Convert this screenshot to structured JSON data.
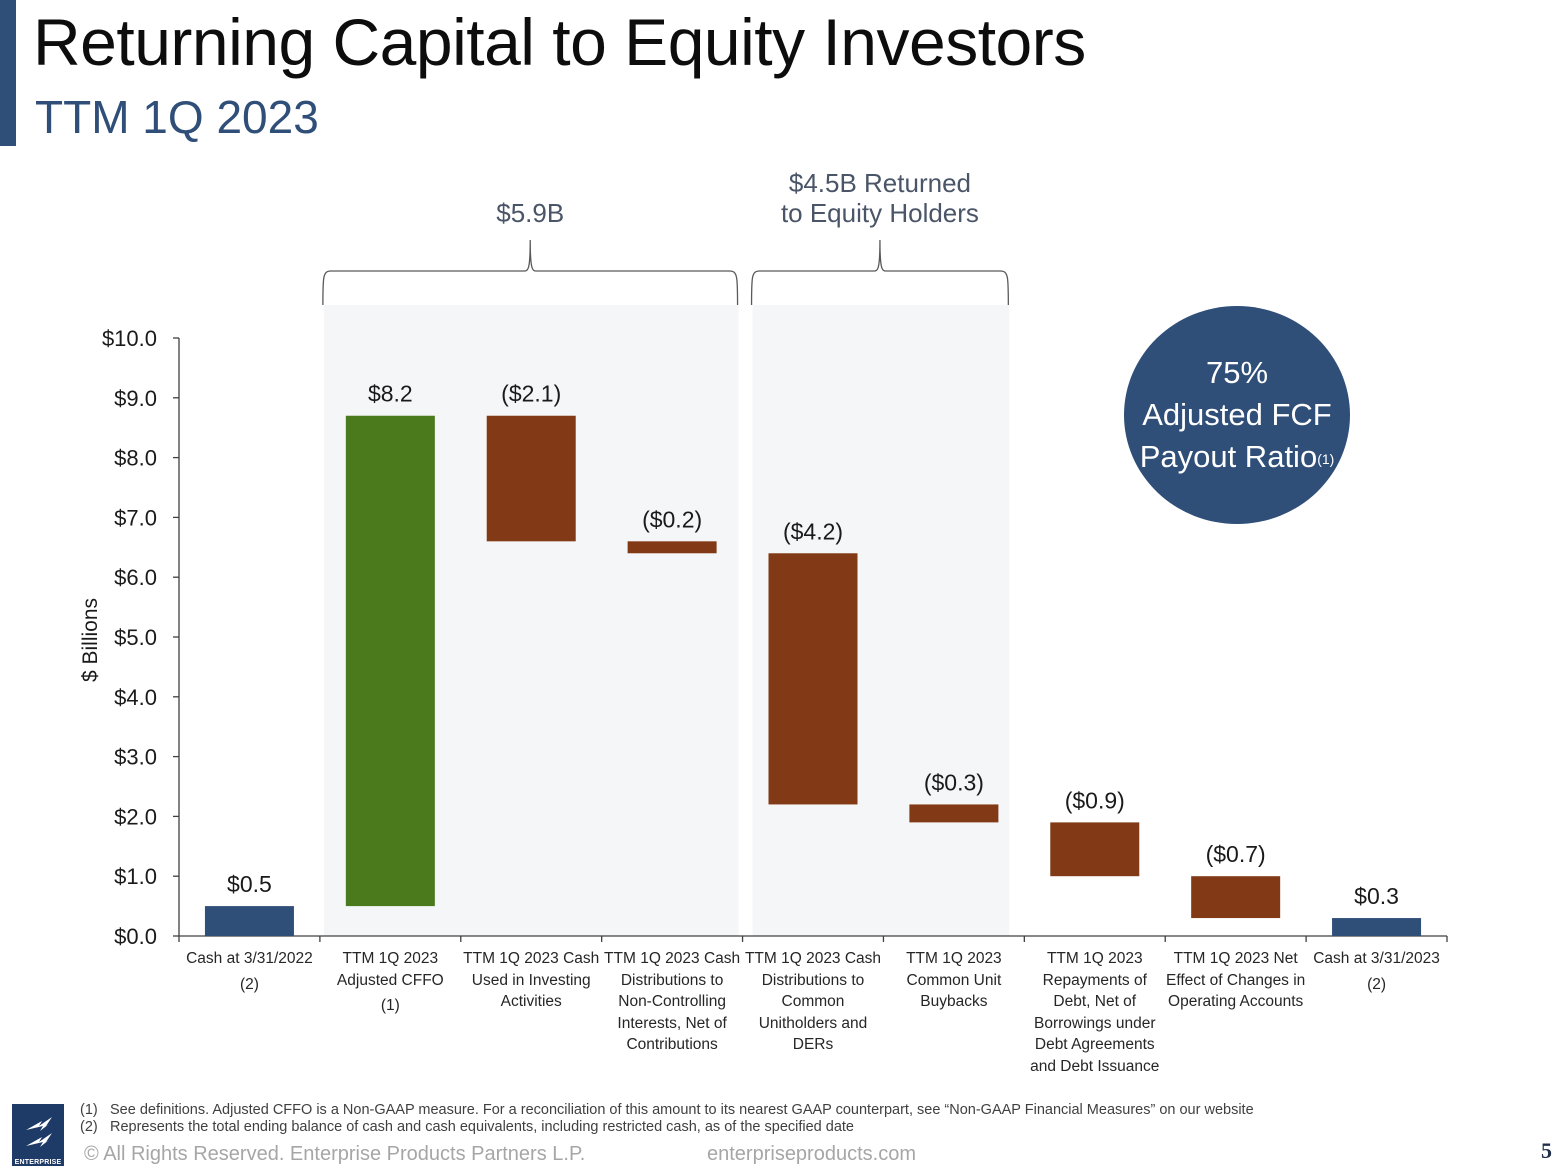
{
  "header": {
    "title": "Returning Capital to Equity Investors",
    "subtitle": "TTM 1Q 2023"
  },
  "brackets": [
    {
      "label_lines": [
        "$5.9B"
      ]
    },
    {
      "label_lines": [
        "$4.5B Returned",
        "to Equity Holders"
      ]
    }
  ],
  "badge": {
    "pct": "75%",
    "line1": "Adjusted FCF",
    "line2": "Payout Ratio",
    "footnote_ref": "(1)"
  },
  "footer": {
    "footnotes": [
      {
        "num": "(1)",
        "text": "See definitions.  Adjusted CFFO is a Non-GAAP measure.  For a reconciliation of this amount to its nearest GAAP counterpart, see “Non-GAAP Financial Measures” on our website"
      },
      {
        "num": "(2)",
        "text": "Represents the total ending balance of cash and cash equivalents, including restricted cash, as of the specified date"
      }
    ],
    "copyright": "© All Rights Reserved. Enterprise Products Partners L.P.",
    "website": "enterpriseproducts.com",
    "page_number": "5",
    "logo_text": "ENTERPRISE"
  },
  "colors": {
    "accent": "#2f4e78",
    "cash_bar": "#2f4e78",
    "increase_bar": "#4a7a1c",
    "decrease_bar": "#823a16",
    "highlight_band": "#f5f6f8"
  },
  "chart_data": {
    "type": "bar",
    "subtype": "waterfall",
    "title": "Returning Capital to Equity Investors",
    "subtitle": "TTM 1Q 2023",
    "xlabel": "",
    "ylabel": "$ Billions",
    "ylim": [
      0,
      10
    ],
    "yticks": [
      "$0.0",
      "$1.0",
      "$2.0",
      "$3.0",
      "$4.0",
      "$5.0",
      "$6.0",
      "$7.0",
      "$8.0",
      "$9.0",
      "$10.0"
    ],
    "grid": false,
    "legend": null,
    "categories": [
      "Cash at 3/31/2022 (2)",
      "TTM 1Q 2023 Adjusted CFFO (1)",
      "TTM 1Q 2023 Cash Used in Investing Activities",
      "TTM 1Q 2023 Cash Distributions to Non-Controlling Interests, Net of Contributions",
      "TTM 1Q 2023 Cash Distributions to Common Unitholders and DERs",
      "TTM 1Q 2023 Common Unit Buybacks",
      "TTM 1Q 2023 Repayments of Debt, Net of Borrowings under Debt Agreements and Debt Issuance",
      "TTM 1Q 2023 Net Effect of Changes in Operating Accounts",
      "Cash at 3/31/2023 (2)"
    ],
    "category_lines": [
      [
        "Cash at 3/31/2022",
        "(2)"
      ],
      [
        "TTM 1Q 2023",
        "Adjusted CFFO",
        "(1)"
      ],
      [
        "TTM 1Q 2023 Cash",
        "Used in Investing",
        "Activities"
      ],
      [
        "TTM 1Q 2023 Cash",
        "Distributions to",
        "Non-Controlling",
        "Interests, Net of",
        "Contributions"
      ],
      [
        "TTM 1Q 2023 Cash",
        "Distributions to",
        "Common",
        "Unitholders and",
        "DERs"
      ],
      [
        "TTM 1Q 2023",
        "Common Unit",
        "Buybacks"
      ],
      [
        "TTM 1Q 2023",
        "Repayments of",
        "Debt, Net of",
        "Borrowings under",
        "Debt Agreements",
        "and Debt Issuance"
      ],
      [
        "TTM 1Q 2023 Net",
        "Effect of Changes in",
        "Operating Accounts"
      ],
      [
        "Cash at 3/31/2023",
        "(2)"
      ]
    ],
    "values": [
      0.5,
      8.2,
      -2.1,
      -0.2,
      -4.2,
      -0.3,
      -0.9,
      -0.7,
      0.3
    ],
    "data_labels": [
      "$0.5",
      "$8.2",
      "($2.1)",
      "($0.2)",
      "($4.2)",
      "($0.3)",
      "($0.9)",
      "($0.7)",
      "$0.3"
    ],
    "bar_ranges": [
      [
        0,
        0.5
      ],
      [
        0.5,
        8.7
      ],
      [
        6.6,
        8.7
      ],
      [
        6.4,
        6.6
      ],
      [
        2.2,
        6.4
      ],
      [
        1.9,
        2.2
      ],
      [
        1.0,
        1.9
      ],
      [
        0.3,
        1.0
      ],
      [
        0,
        0.3
      ]
    ],
    "bar_types": [
      "total",
      "increase",
      "decrease",
      "decrease",
      "decrease",
      "decrease",
      "decrease",
      "decrease",
      "total"
    ],
    "annotations": [
      {
        "text": "$5.9B",
        "spans_categories": [
          1,
          3
        ]
      },
      {
        "text": "$4.5B Returned to Equity Holders",
        "spans_categories": [
          4,
          5
        ]
      },
      {
        "text": "75% Adjusted FCF Payout Ratio(1)",
        "type": "callout-circle"
      }
    ]
  }
}
